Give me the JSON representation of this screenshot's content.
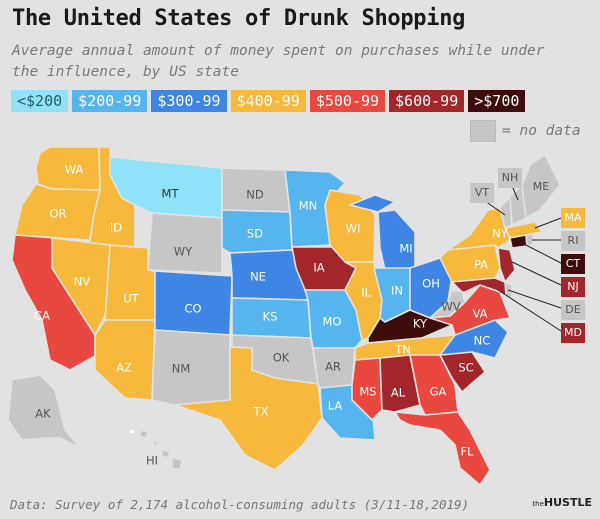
{
  "title": "The United States of Drunk Shopping",
  "subtitle": "Average annual amount of money spent on purchases while under the influence, by US state",
  "legend": [
    {
      "label": "<$200",
      "color": "#8fe2f7",
      "text_color": "#2b5d6b"
    },
    {
      "label": "$200-99",
      "color": "#56b4ef",
      "text_color": "#ffffff"
    },
    {
      "label": "$300-99",
      "color": "#3f86e4",
      "text_color": "#ffffff"
    },
    {
      "label": "$400-99",
      "color": "#f6b93b",
      "text_color": "#ffffff"
    },
    {
      "label": "$500-99",
      "color": "#e8483f",
      "text_color": "#ffffff"
    },
    {
      "label": "$600-99",
      "color": "#a3262a",
      "text_color": "#ffffff"
    },
    {
      "label": ">$700",
      "color": "#3f0c0c",
      "text_color": "#ffffff"
    }
  ],
  "no_data": {
    "label": "= no data",
    "color": "#c6c6c6"
  },
  "states": {
    "WA": {
      "label": "WA",
      "bin": 3
    },
    "OR": {
      "label": "OR",
      "bin": 3
    },
    "CA": {
      "label": "CA",
      "bin": 4
    },
    "ID": {
      "label": "ID",
      "bin": 3
    },
    "NV": {
      "label": "NV",
      "bin": 3
    },
    "MT": {
      "label": "MT",
      "bin": 0
    },
    "WY": {
      "label": "WY",
      "bin": null
    },
    "UT": {
      "label": "UT",
      "bin": 3
    },
    "AZ": {
      "label": "AZ",
      "bin": 3
    },
    "CO": {
      "label": "CO",
      "bin": 2
    },
    "NM": {
      "label": "NM",
      "bin": null
    },
    "ND": {
      "label": "ND",
      "bin": null
    },
    "SD": {
      "label": "SD",
      "bin": 1
    },
    "NE": {
      "label": "NE",
      "bin": 2
    },
    "KS": {
      "label": "KS",
      "bin": 1
    },
    "OK": {
      "label": "OK",
      "bin": null
    },
    "TX": {
      "label": "TX",
      "bin": 3
    },
    "MN": {
      "label": "MN",
      "bin": 1
    },
    "IA": {
      "label": "IA",
      "bin": 5
    },
    "MO": {
      "label": "MO",
      "bin": 1
    },
    "AR": {
      "label": "AR",
      "bin": null
    },
    "LA": {
      "label": "LA",
      "bin": 1
    },
    "WI": {
      "label": "WI",
      "bin": 3
    },
    "IL": {
      "label": "IL",
      "bin": 3
    },
    "MI": {
      "label": "MI",
      "bin": 2
    },
    "IN": {
      "label": "IN",
      "bin": 1
    },
    "OH": {
      "label": "OH",
      "bin": 2
    },
    "KY": {
      "label": "KY",
      "bin": 6
    },
    "TN": {
      "label": "TN",
      "bin": 3
    },
    "MS": {
      "label": "MS",
      "bin": 4
    },
    "AL": {
      "label": "AL",
      "bin": 5
    },
    "GA": {
      "label": "GA",
      "bin": 4
    },
    "FL": {
      "label": "FL",
      "bin": 4
    },
    "SC": {
      "label": "SC",
      "bin": 5
    },
    "NC": {
      "label": "NC",
      "bin": 2
    },
    "VA": {
      "label": "VA",
      "bin": 4
    },
    "WV": {
      "label": "WV",
      "bin": null
    },
    "PA": {
      "label": "PA",
      "bin": 3
    },
    "NY": {
      "label": "NY",
      "bin": 3
    },
    "VT": {
      "label": "VT",
      "bin": null
    },
    "NH": {
      "label": "NH",
      "bin": null
    },
    "ME": {
      "label": "ME",
      "bin": null
    },
    "MA": {
      "label": "MA",
      "bin": 3
    },
    "RI": {
      "label": "RI",
      "bin": null
    },
    "CT": {
      "label": "CT",
      "bin": 6
    },
    "NJ": {
      "label": "NJ",
      "bin": 5
    },
    "DE": {
      "label": "DE",
      "bin": null
    },
    "MD": {
      "label": "MD",
      "bin": 5
    },
    "AK": {
      "label": "AK",
      "bin": null
    },
    "HI": {
      "label": "HI",
      "bin": null
    }
  },
  "footer": "Data: Survey of 2,174 alcohol-consuming adults (3/11-18,2019)",
  "brand": {
    "prefix": "the",
    "name": "HUSTLE"
  }
}
